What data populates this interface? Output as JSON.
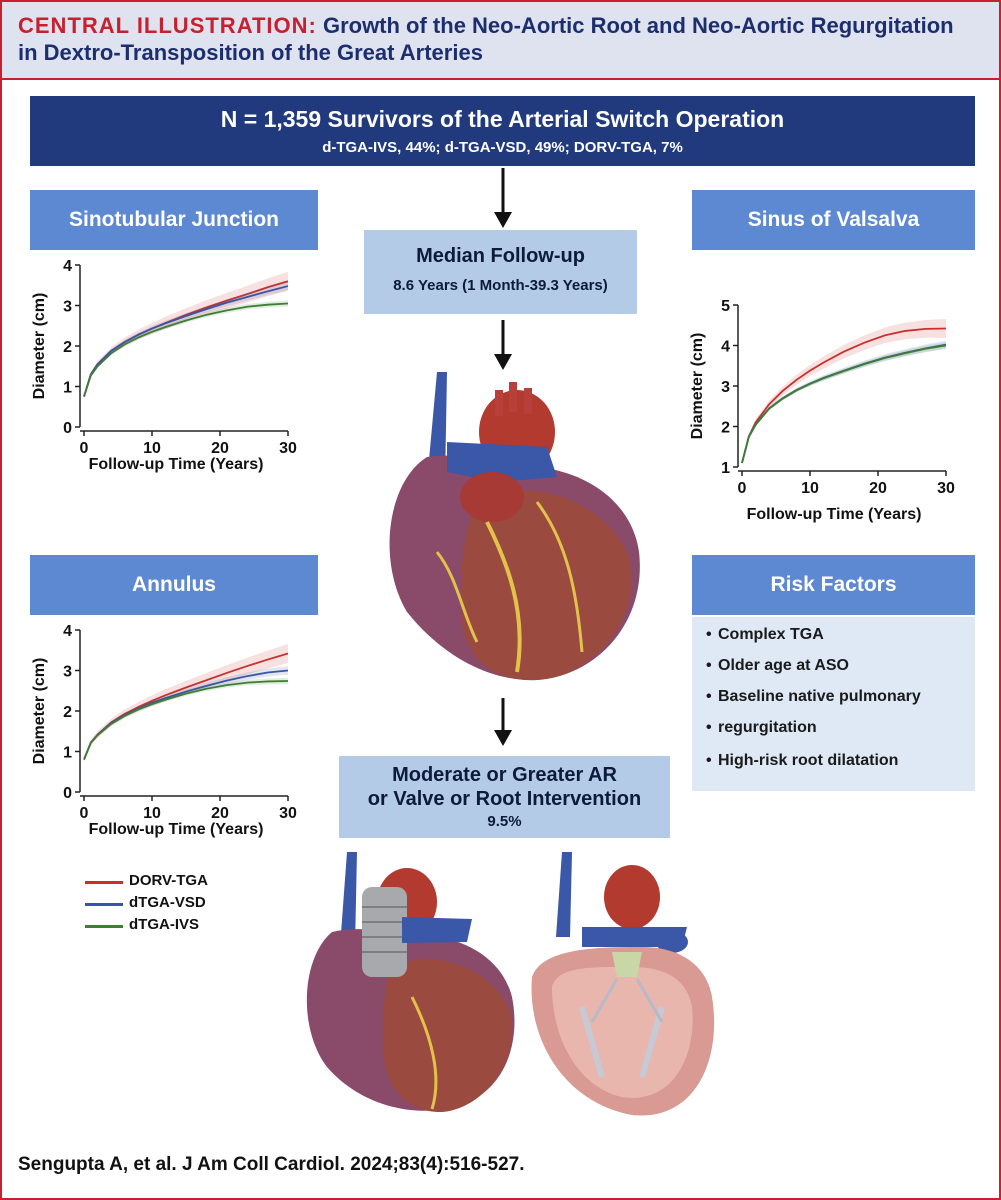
{
  "title": {
    "prefix": "CENTRAL ILLUSTRATION:",
    "text": "Growth of the Neo-Aortic Root and Neo-Aortic Regurgitation in Dextro-Transposition of the Great Arteries"
  },
  "cohort": {
    "main": "N = 1,359 Survivors of the Arterial Switch Operation",
    "sub": "d-TGA-IVS, 44%; d-TGA-VSD, 49%; DORV-TGA, 7%"
  },
  "followup": {
    "title": "Median Follow-up",
    "value": "8.6 Years (1 Month-39.3 Years)"
  },
  "outcome": {
    "line1": "Moderate or Greater AR",
    "line2": "or Valve or Root Intervention",
    "value": "9.5%"
  },
  "labels": {
    "stj": "Sinotubular Junction",
    "sov": "Sinus of Valsalva",
    "annulus": "Annulus",
    "risk": "Risk Factors"
  },
  "risk_factors": [
    "Complex TGA",
    "Older age at ASO",
    "Baseline native pulmonary",
    "regurgitation",
    "High-risk root dilatation"
  ],
  "legend": [
    {
      "name": "DORV-TGA",
      "color": "#c9302c"
    },
    {
      "name": "dTGA-VSD",
      "color": "#3a54a4"
    },
    {
      "name": "dTGA-IVS",
      "color": "#3e7d33"
    }
  ],
  "citation": "Sengupta A, et al. J Am Coll Cardiol. 2024;83(4):516-527.",
  "chart_data": [
    {
      "type": "line",
      "panel": "Sinotubular Junction",
      "xlabel": "Follow-up Time (Years)",
      "ylabel": "Diameter (cm)",
      "xlim": [
        0,
        30
      ],
      "ylim": [
        0,
        4
      ],
      "xticks": [
        0,
        10,
        20,
        30
      ],
      "yticks": [
        0,
        1,
        2,
        3,
        4
      ],
      "x": [
        0,
        1,
        2,
        4,
        6,
        8,
        10,
        12,
        15,
        18,
        21,
        24,
        27,
        30
      ],
      "series": [
        {
          "name": "DORV-TGA",
          "color": "#c9302c",
          "values": [
            0.75,
            1.3,
            1.55,
            1.88,
            2.1,
            2.28,
            2.43,
            2.57,
            2.77,
            2.95,
            3.12,
            3.28,
            3.45,
            3.6
          ]
        },
        {
          "name": "dTGA-VSD",
          "color": "#3a54a4",
          "values": [
            0.75,
            1.3,
            1.55,
            1.88,
            2.1,
            2.28,
            2.43,
            2.56,
            2.74,
            2.91,
            3.07,
            3.21,
            3.35,
            3.48
          ]
        },
        {
          "name": "dTGA-IVS",
          "color": "#3e7d33",
          "values": [
            0.75,
            1.27,
            1.5,
            1.82,
            2.04,
            2.21,
            2.35,
            2.47,
            2.63,
            2.77,
            2.88,
            2.97,
            3.02,
            3.05
          ]
        }
      ]
    },
    {
      "type": "line",
      "panel": "Sinus of Valsalva",
      "xlabel": "Follow-up Time (Years)",
      "ylabel": "Diameter (cm)",
      "xlim": [
        0,
        30
      ],
      "ylim": [
        1,
        5
      ],
      "xticks": [
        0,
        10,
        20,
        30
      ],
      "yticks": [
        1,
        2,
        3,
        4,
        5
      ],
      "x": [
        0,
        1,
        2,
        4,
        6,
        8,
        10,
        12,
        15,
        18,
        21,
        24,
        27,
        30
      ],
      "series": [
        {
          "name": "DORV-TGA",
          "color": "#c9302c",
          "values": [
            1.1,
            1.75,
            2.1,
            2.55,
            2.88,
            3.15,
            3.38,
            3.58,
            3.85,
            4.07,
            4.25,
            4.36,
            4.41,
            4.42
          ]
        },
        {
          "name": "dTGA-VSD",
          "color": "#3a54a4",
          "values": [
            1.1,
            1.75,
            2.05,
            2.45,
            2.7,
            2.9,
            3.06,
            3.2,
            3.38,
            3.55,
            3.7,
            3.82,
            3.93,
            4.02
          ]
        },
        {
          "name": "dTGA-IVS",
          "color": "#3e7d33",
          "values": [
            1.1,
            1.74,
            2.04,
            2.44,
            2.69,
            2.89,
            3.05,
            3.19,
            3.37,
            3.54,
            3.69,
            3.81,
            3.92,
            4.0
          ]
        }
      ]
    },
    {
      "type": "line",
      "panel": "Annulus",
      "xlabel": "Follow-up Time (Years)",
      "ylabel": "Diameter (cm)",
      "xlim": [
        0,
        30
      ],
      "ylim": [
        0,
        4
      ],
      "xticks": [
        0,
        10,
        20,
        30
      ],
      "yticks": [
        0,
        1,
        2,
        3,
        4
      ],
      "x": [
        0,
        1,
        2,
        4,
        6,
        8,
        10,
        12,
        15,
        18,
        21,
        24,
        27,
        30
      ],
      "series": [
        {
          "name": "DORV-TGA",
          "color": "#c9302c",
          "values": [
            0.8,
            1.22,
            1.42,
            1.72,
            1.93,
            2.1,
            2.25,
            2.39,
            2.58,
            2.76,
            2.94,
            3.11,
            3.27,
            3.42
          ]
        },
        {
          "name": "dTGA-VSD",
          "color": "#3a54a4",
          "values": [
            0.8,
            1.22,
            1.41,
            1.7,
            1.9,
            2.06,
            2.2,
            2.32,
            2.48,
            2.62,
            2.75,
            2.86,
            2.95,
            3.0
          ]
        },
        {
          "name": "dTGA-IVS",
          "color": "#3e7d33",
          "values": [
            0.8,
            1.21,
            1.4,
            1.68,
            1.88,
            2.04,
            2.17,
            2.28,
            2.43,
            2.55,
            2.64,
            2.7,
            2.73,
            2.74
          ]
        }
      ]
    }
  ]
}
